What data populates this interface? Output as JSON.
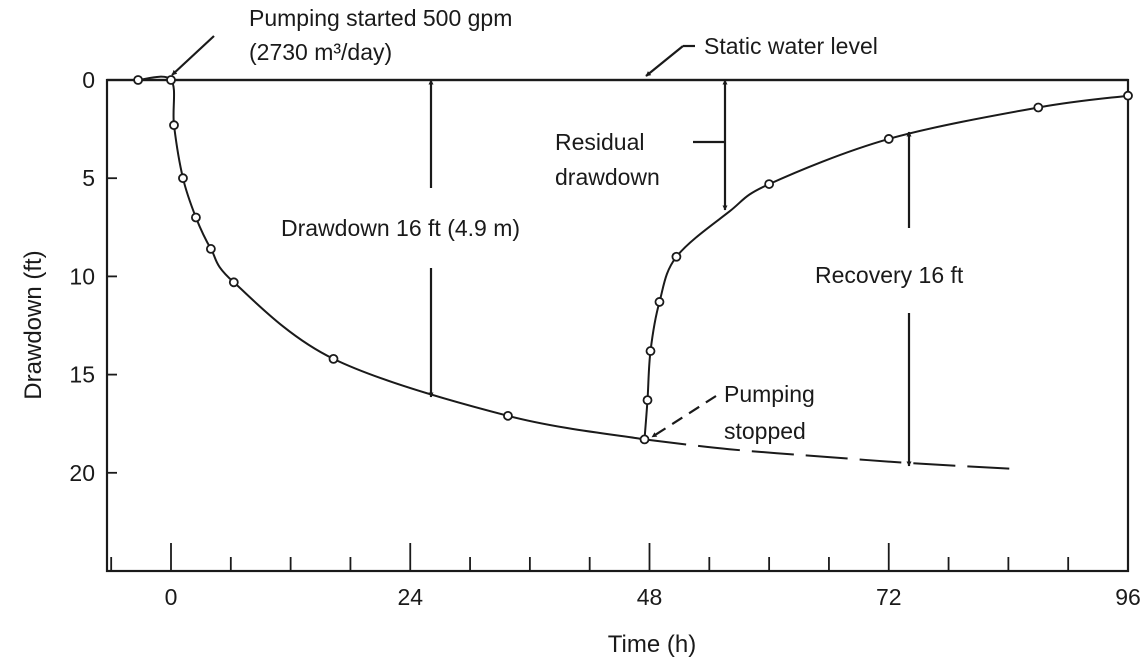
{
  "chart_data": {
    "type": "line",
    "xlabel": "Time (h)",
    "ylabel": "Drawdown (ft)",
    "xlim": [
      -6.5,
      96
    ],
    "ylim": [
      25,
      0
    ],
    "y_inverted": true,
    "x_ticks": [
      0,
      24,
      48,
      72,
      96
    ],
    "y_ticks": [
      0,
      5,
      10,
      15,
      20
    ],
    "grid": false,
    "series": [
      {
        "kind": "pumping-drawdown",
        "style": "solid",
        "points": [
          [
            -3.3,
            0
          ],
          [
            0,
            0
          ],
          [
            0.3,
            2.3
          ],
          [
            1.2,
            5.0
          ],
          [
            2.5,
            7.0
          ],
          [
            4.0,
            8.6
          ],
          [
            6.3,
            10.3
          ],
          [
            16.3,
            14.2
          ],
          [
            33.8,
            17.1
          ],
          [
            47.5,
            18.3
          ]
        ]
      },
      {
        "kind": "projected-drawdown",
        "style": "dashed",
        "points": [
          [
            47.5,
            18.3
          ],
          [
            56,
            18.8
          ],
          [
            66,
            19.2
          ],
          [
            74,
            19.5
          ],
          [
            84.5,
            19.8
          ]
        ]
      },
      {
        "kind": "recovery",
        "style": "solid",
        "points": [
          [
            47.5,
            18.3
          ],
          [
            47.8,
            16.3
          ],
          [
            48.1,
            13.8
          ],
          [
            49,
            11.3
          ],
          [
            50.7,
            9.0
          ],
          [
            56,
            6.7
          ],
          [
            60,
            5.3
          ],
          [
            72,
            3.0
          ],
          [
            87,
            1.4
          ],
          [
            96,
            0.8
          ]
        ]
      }
    ],
    "marked_points": [
      [
        -3.3,
        0
      ],
      [
        0,
        0
      ],
      [
        0.3,
        2.3
      ],
      [
        1.2,
        5.0
      ],
      [
        2.5,
        7.0
      ],
      [
        4.0,
        8.6
      ],
      [
        6.3,
        10.3
      ],
      [
        16.3,
        14.2
      ],
      [
        33.8,
        17.1
      ],
      [
        47.5,
        18.3
      ],
      [
        47.8,
        16.3
      ],
      [
        48.1,
        13.8
      ],
      [
        49,
        11.3
      ],
      [
        50.7,
        9.0
      ],
      [
        60,
        5.3
      ],
      [
        72,
        3.0
      ],
      [
        87,
        1.4
      ],
      [
        96,
        0.8
      ]
    ],
    "annotations": {
      "pumping_started": "Pumping started 500 gpm",
      "pumping_rate_metric": "(2730 m³/day)",
      "static_level": "Static water level",
      "residual_1": "Residual",
      "residual_2": "drawdown",
      "drawdown": "Drawdown 16 ft (4.9 m)",
      "recovery": "Recovery 16 ft",
      "stopped_1": "Pumping",
      "stopped_2": "stopped"
    }
  }
}
